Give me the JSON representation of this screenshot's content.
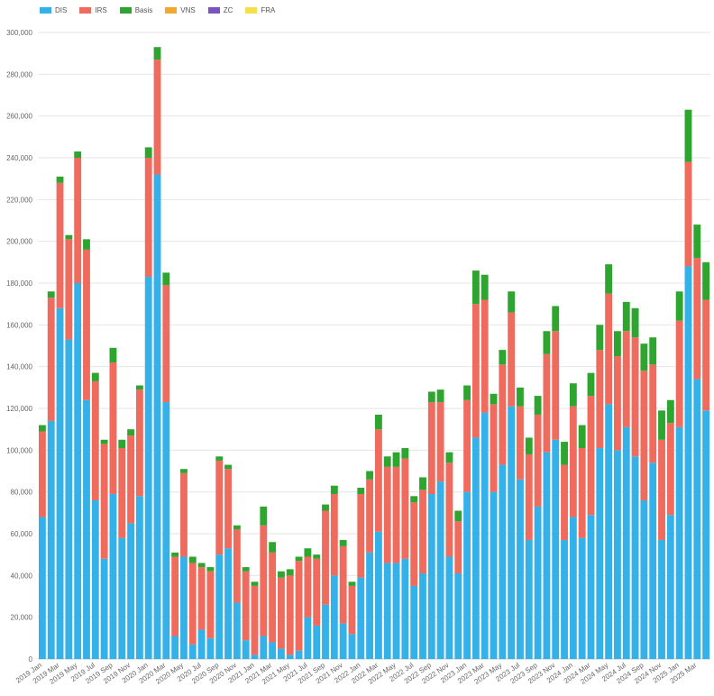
{
  "chart_data": {
    "type": "bar",
    "stacked": true,
    "legend_position": "top-left",
    "grid": true,
    "colors": {
      "DIS": "#35b1ea",
      "IRS": "#ee6b5d",
      "Basis": "#2ea52e",
      "VNS": "#f5a72e",
      "ZC": "#7b52c2",
      "FRA": "#f4e14a"
    },
    "categories": [
      "2019 Jan",
      "2019 Feb",
      "2019 Mar",
      "2019 Apr",
      "2019 May",
      "2019 Jun",
      "2019 Jul",
      "2019 Aug",
      "2019 Sep",
      "2019 Oct",
      "2019 Nov",
      "2019 Dec",
      "2020 Jan",
      "2020 Feb",
      "2020 Mar",
      "2020 Apr",
      "2020 May",
      "2020 Jun",
      "2020 Jul",
      "2020 Aug",
      "2020 Sep",
      "2020 Oct",
      "2020 Nov",
      "2020 Dec",
      "2021 Jan",
      "2021 Feb",
      "2021 Mar",
      "2021 Apr",
      "2021 May",
      "2021 Jun",
      "2021 Jul",
      "2021 Aug",
      "2021 Sep",
      "2021 Oct",
      "2021 Nov",
      "2021 Dec",
      "2022 Jan",
      "2022 Feb",
      "2022 Mar",
      "2022 Apr",
      "2022 May",
      "2022 Jun",
      "2022 Jul",
      "2022 Aug",
      "2022 Sep",
      "2022 Oct",
      "2022 Nov",
      "2022 Dec",
      "2023 Jan",
      "2023 Feb",
      "2023 Mar",
      "2023 Apr",
      "2023 May",
      "2023 Jun",
      "2023 Jul",
      "2023 Aug",
      "2023 Sep",
      "2023 Oct",
      "2023 Nov",
      "2023 Dec",
      "2024 Jan",
      "2024 Feb",
      "2024 Mar",
      "2024 Apr",
      "2024 May",
      "2024 Jun",
      "2024 Jul",
      "2024 Aug",
      "2024 Sep",
      "2024 Oct",
      "2024 Nov",
      "2024 Dec",
      "2025 Jan",
      "2025 Feb",
      "2025 Mar",
      "2025 Apr"
    ],
    "x_tick_labels": [
      "2019 Jan",
      "2019 Mar",
      "2019 May",
      "2019 Jul",
      "2019 Sep",
      "2019 Nov",
      "2020 Jan",
      "2020 Mar",
      "2020 May",
      "2020 Jul",
      "2020 Sep",
      "2020 Nov",
      "2021 Jan",
      "2021 Mar",
      "2021 May",
      "2021 Jul",
      "2021 Sep",
      "2021 Nov",
      "2022 Jan",
      "2022 Mar",
      "2022 May",
      "2022 Jul",
      "2022 Sep",
      "2022 Nov",
      "2023 Jan",
      "2023 Mar",
      "2023 May",
      "2023 Jul",
      "2023 Sep",
      "2023 Nov",
      "2024 Jan",
      "2024 Mar",
      "2024 May",
      "2024 Jul",
      "2024 Sep",
      "2024 Nov",
      "2025 Jan",
      "2025 Mar"
    ],
    "ylim": [
      0,
      300000
    ],
    "y_ticks": [
      0,
      20000,
      40000,
      60000,
      80000,
      100000,
      120000,
      140000,
      160000,
      180000,
      200000,
      220000,
      240000,
      260000,
      280000,
      300000
    ],
    "series": [
      {
        "name": "DIS",
        "values": [
          68000,
          114000,
          168000,
          153000,
          180000,
          124000,
          76000,
          48000,
          79000,
          58000,
          65000,
          78000,
          183000,
          232000,
          123000,
          11000,
          49000,
          7000,
          14000,
          10000,
          50000,
          53000,
          27000,
          9000,
          2000,
          11000,
          8000,
          5000,
          2000,
          4000,
          20000,
          16000,
          26000,
          40000,
          17000,
          12000,
          39000,
          51000,
          61000,
          46000,
          46000,
          48000,
          35000,
          41000,
          79000,
          85000,
          49000,
          41000,
          80000,
          106000,
          118000,
          80000,
          93000,
          121000,
          86000,
          57000,
          73000,
          99000,
          105000,
          57000,
          68000,
          58000,
          69000,
          101000,
          122000,
          100000,
          111000,
          97000,
          76000,
          94000,
          57000,
          69000,
          111000,
          188000,
          134000,
          119000
        ]
      },
      {
        "name": "IRS",
        "values": [
          41000,
          59000,
          60000,
          48000,
          60000,
          72000,
          57000,
          55000,
          63000,
          43000,
          42000,
          51000,
          57000,
          55000,
          56000,
          38000,
          40000,
          39000,
          30000,
          32000,
          45000,
          38000,
          35000,
          33000,
          33000,
          53000,
          43000,
          34000,
          38000,
          43000,
          29000,
          32000,
          45000,
          39000,
          37000,
          23000,
          40000,
          35000,
          49000,
          46000,
          46000,
          48000,
          40000,
          40000,
          44000,
          38000,
          45000,
          25000,
          44000,
          64000,
          54000,
          42000,
          48000,
          45000,
          35000,
          41000,
          44000,
          47000,
          52000,
          36000,
          53000,
          43000,
          57000,
          47000,
          53000,
          45000,
          46000,
          57000,
          62000,
          47000,
          48000,
          44000,
          51000,
          50000,
          58000,
          53000
        ]
      },
      {
        "name": "Basis",
        "values": [
          3000,
          3000,
          3000,
          2000,
          3000,
          5000,
          4000,
          2000,
          7000,
          4000,
          3000,
          2000,
          5000,
          6000,
          6000,
          2000,
          2000,
          3000,
          2000,
          2000,
          2000,
          2000,
          2000,
          2000,
          2000,
          9000,
          5000,
          3000,
          3000,
          2000,
          4000,
          2000,
          3000,
          4000,
          3000,
          2000,
          3000,
          4000,
          7000,
          5000,
          7000,
          5000,
          3000,
          6000,
          5000,
          6000,
          5000,
          5000,
          7000,
          16000,
          12000,
          5000,
          7000,
          10000,
          9000,
          8000,
          9000,
          11000,
          12000,
          11000,
          11000,
          11000,
          11000,
          12000,
          14000,
          12000,
          14000,
          14000,
          13000,
          13000,
          14000,
          11000,
          14000,
          25000,
          16000,
          18000
        ]
      },
      {
        "name": "VNS",
        "values": [
          0,
          0,
          0,
          0,
          0,
          0,
          0,
          0,
          0,
          0,
          0,
          0,
          0,
          0,
          0,
          0,
          0,
          0,
          0,
          0,
          0,
          0,
          0,
          0,
          0,
          0,
          0,
          0,
          0,
          0,
          0,
          0,
          0,
          0,
          0,
          0,
          0,
          0,
          0,
          0,
          0,
          0,
          0,
          0,
          0,
          0,
          0,
          0,
          0,
          0,
          0,
          0,
          0,
          0,
          0,
          0,
          0,
          0,
          0,
          0,
          0,
          0,
          0,
          0,
          0,
          0,
          0,
          0,
          0,
          0,
          0,
          0,
          0,
          0,
          0,
          0
        ]
      },
      {
        "name": "ZC",
        "values": [
          0,
          0,
          0,
          0,
          0,
          0,
          0,
          0,
          0,
          0,
          0,
          0,
          0,
          0,
          0,
          0,
          0,
          0,
          0,
          0,
          0,
          0,
          0,
          0,
          0,
          0,
          0,
          0,
          0,
          0,
          0,
          0,
          0,
          0,
          0,
          0,
          0,
          0,
          0,
          0,
          0,
          0,
          0,
          0,
          0,
          0,
          0,
          0,
          0,
          0,
          0,
          0,
          0,
          0,
          0,
          0,
          0,
          0,
          0,
          0,
          0,
          0,
          0,
          0,
          0,
          0,
          0,
          0,
          0,
          0,
          0,
          0,
          0,
          0,
          0,
          0
        ]
      },
      {
        "name": "FRA",
        "values": [
          0,
          0,
          0,
          0,
          0,
          0,
          0,
          0,
          0,
          0,
          0,
          0,
          0,
          0,
          0,
          0,
          0,
          0,
          0,
          0,
          0,
          0,
          0,
          0,
          0,
          0,
          0,
          0,
          0,
          0,
          0,
          0,
          0,
          0,
          0,
          0,
          0,
          0,
          0,
          0,
          0,
          0,
          0,
          0,
          0,
          0,
          0,
          0,
          0,
          0,
          0,
          0,
          0,
          0,
          0,
          0,
          0,
          0,
          0,
          0,
          0,
          0,
          0,
          0,
          0,
          0,
          0,
          0,
          0,
          0,
          0,
          0,
          0,
          0,
          0,
          0
        ]
      }
    ]
  }
}
